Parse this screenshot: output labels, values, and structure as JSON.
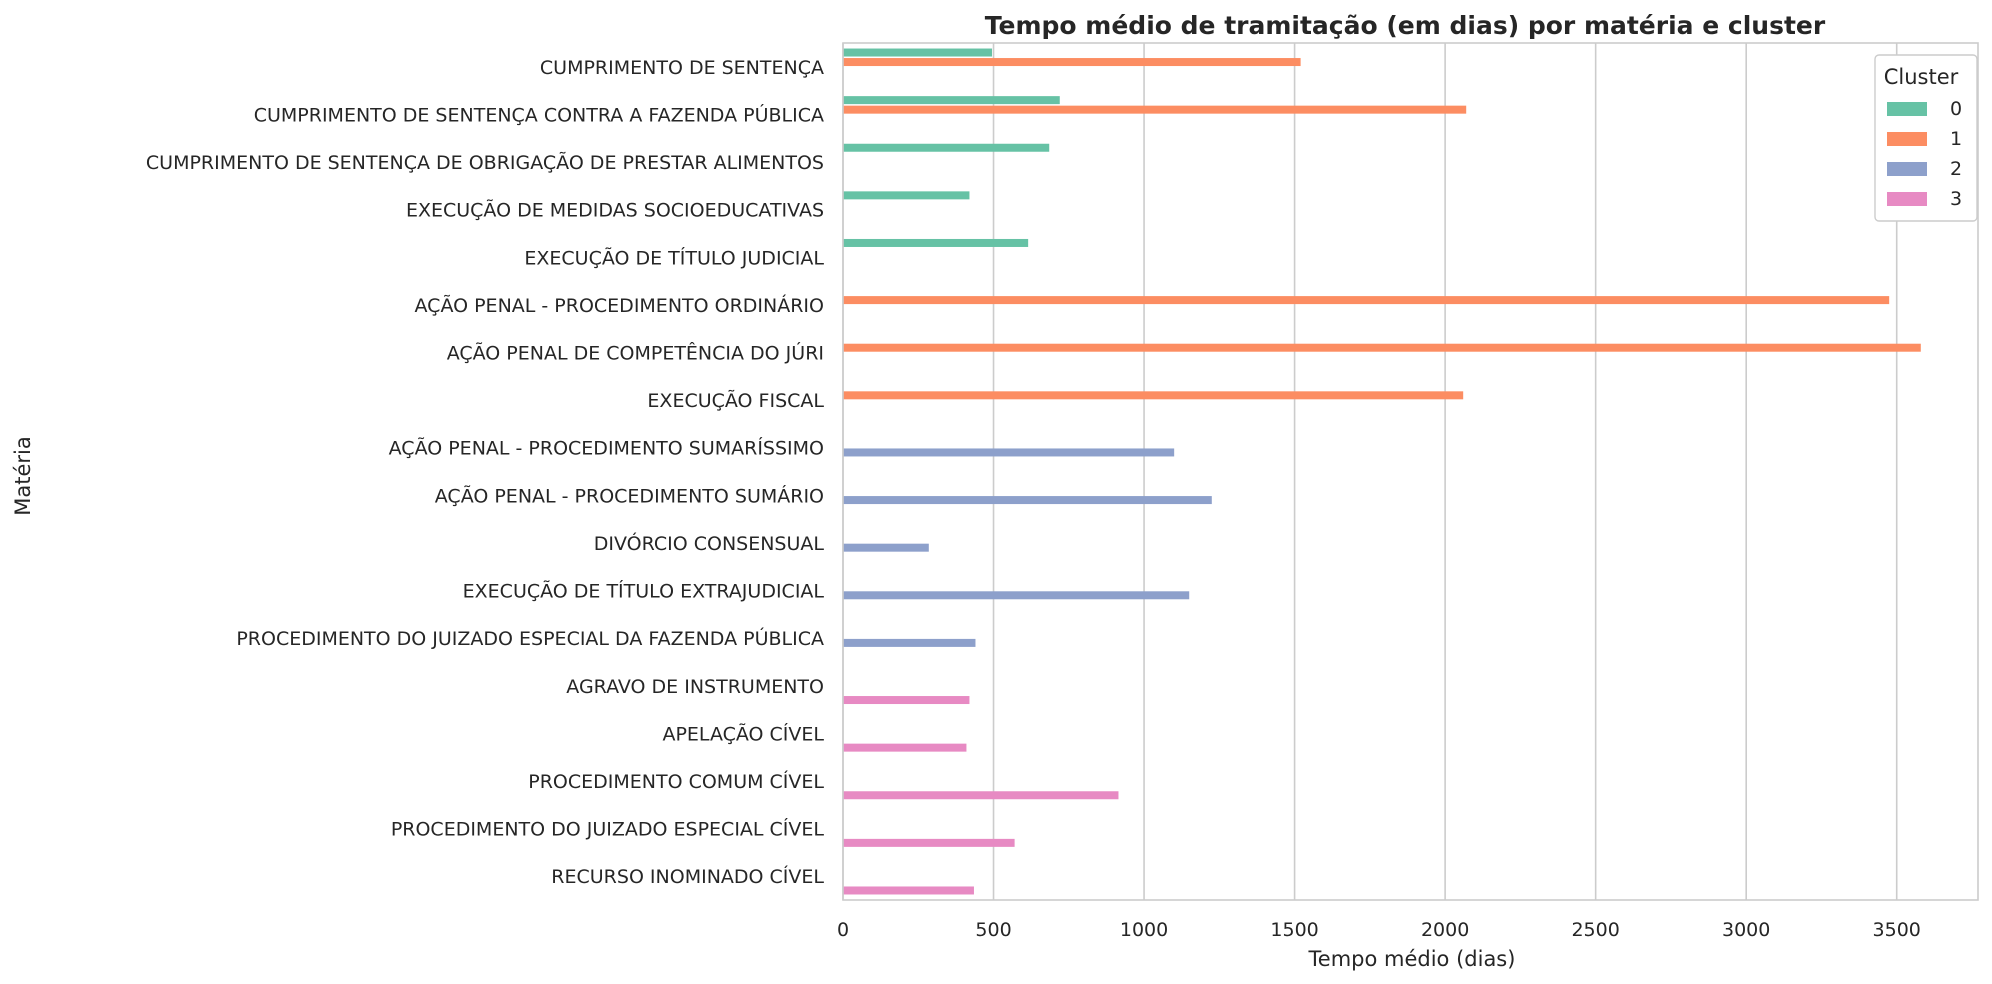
{
  "chart_data": {
    "type": "bar",
    "orientation": "horizontal",
    "title": "Tempo médio de tramitação (em dias) por matéria e cluster",
    "xlabel": "Tempo médio (dias)",
    "ylabel": "Matéria",
    "xlim": [
      0,
      3770
    ],
    "xticks": [
      0,
      500,
      1000,
      1500,
      2000,
      2500,
      3000,
      3500
    ],
    "grid": "vertical",
    "legend_title": "Cluster",
    "legend_placement": "top-right",
    "categories": [
      "CUMPRIMENTO DE SENTENÇA",
      "CUMPRIMENTO DE SENTENÇA CONTRA A FAZENDA PÚBLICA",
      "CUMPRIMENTO DE SENTENÇA DE OBRIGAÇÃO DE PRESTAR ALIMENTOS",
      "EXECUÇÃO DE MEDIDAS SOCIOEDUCATIVAS",
      "EXECUÇÃO DE TÍTULO JUDICIAL",
      "AÇÃO PENAL - PROCEDIMENTO ORDINÁRIO",
      "AÇÃO PENAL DE COMPETÊNCIA DO JÚRI",
      "EXECUÇÃO FISCAL",
      "AÇÃO PENAL - PROCEDIMENTO SUMARÍSSIMO",
      "AÇÃO PENAL - PROCEDIMENTO SUMÁRIO",
      "DIVÓRCIO CONSENSUAL",
      "EXECUÇÃO DE TÍTULO EXTRAJUDICIAL",
      "PROCEDIMENTO DO JUIZADO ESPECIAL DA FAZENDA PÚBLICA",
      "AGRAVO DE INSTRUMENTO",
      "APELAÇÃO CÍVEL",
      "PROCEDIMENTO COMUM CÍVEL",
      "PROCEDIMENTO DO JUIZADO ESPECIAL CÍVEL",
      "RECURSO INOMINADO CÍVEL"
    ],
    "series": [
      {
        "name": "0",
        "color": "#66c2a5",
        "values": [
          495,
          720,
          685,
          420,
          615,
          null,
          null,
          null,
          null,
          null,
          null,
          null,
          null,
          null,
          null,
          null,
          null,
          null
        ]
      },
      {
        "name": "1",
        "color": "#fc8d62",
        "values": [
          1520,
          2070,
          null,
          null,
          null,
          3475,
          3580,
          2060,
          null,
          null,
          null,
          null,
          null,
          null,
          null,
          null,
          null,
          null
        ]
      },
      {
        "name": "2",
        "color": "#8da0cb",
        "values": [
          null,
          null,
          null,
          null,
          null,
          null,
          null,
          null,
          1100,
          1225,
          285,
          1150,
          440,
          null,
          null,
          null,
          null,
          null
        ]
      },
      {
        "name": "3",
        "color": "#e78ac3",
        "values": [
          null,
          null,
          null,
          null,
          null,
          null,
          null,
          null,
          null,
          null,
          null,
          null,
          null,
          420,
          410,
          915,
          570,
          435
        ]
      }
    ]
  }
}
